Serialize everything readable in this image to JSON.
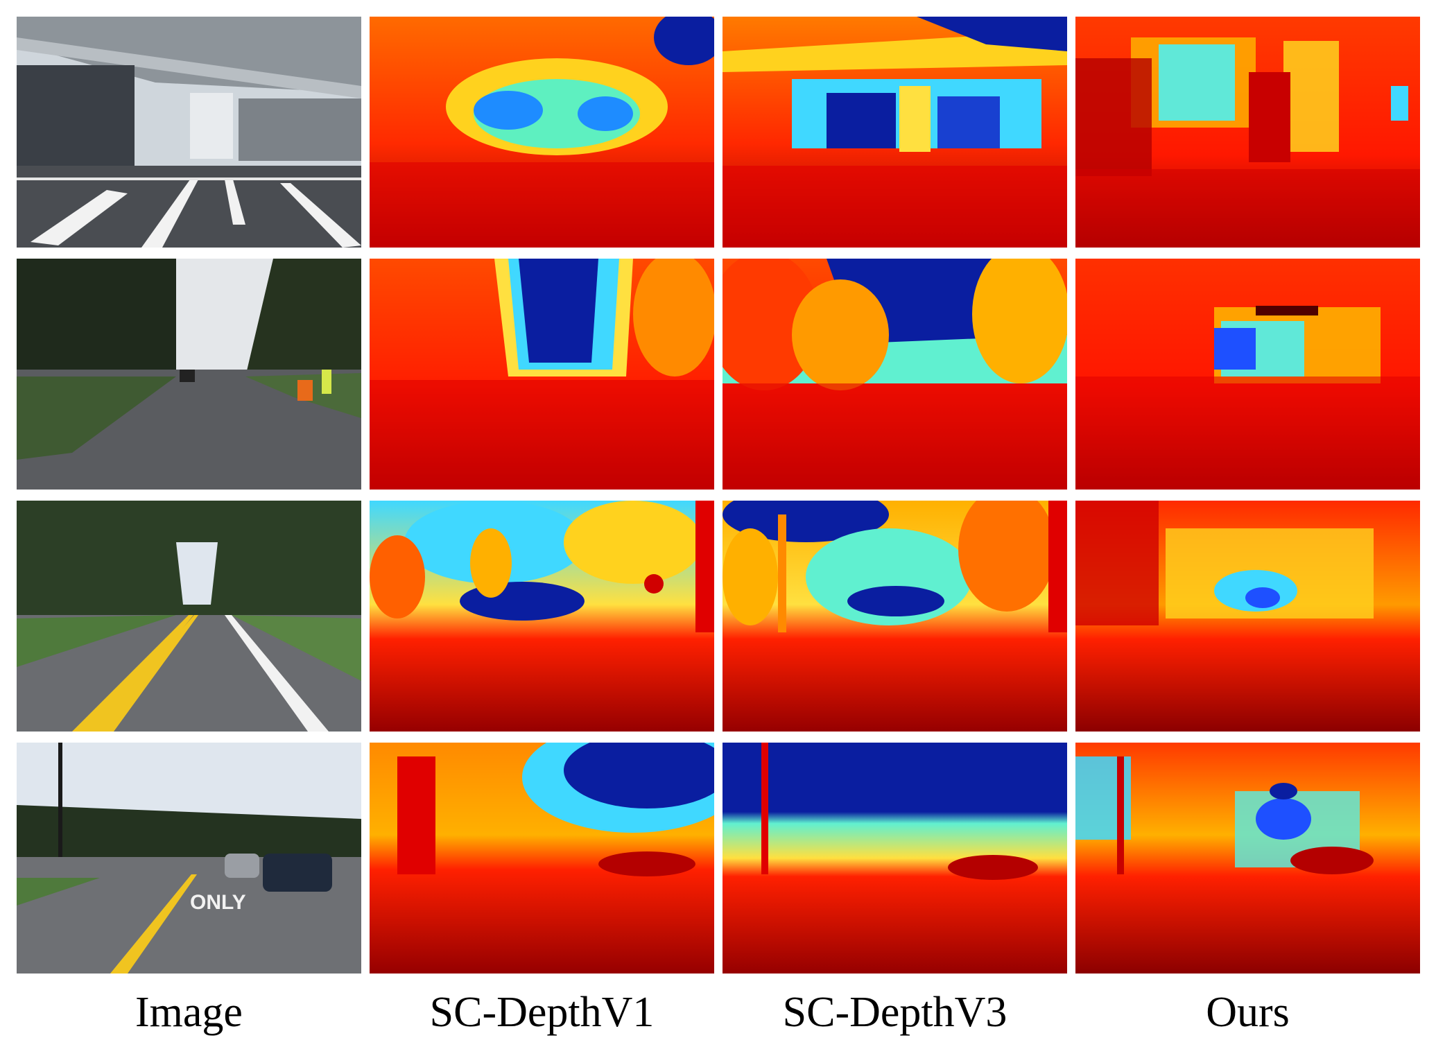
{
  "columns": [
    {
      "label": "Image"
    },
    {
      "label": "SC-DepthV1"
    },
    {
      "label": "SC-DepthV3"
    },
    {
      "label": "Ours"
    }
  ],
  "rows": [
    {
      "scene": "overpass-intersection-with-truck"
    },
    {
      "scene": "road-with-trees-and-traffic-cones"
    },
    {
      "scene": "tree-lined-road-with-yellow-lines"
    },
    {
      "scene": "intersection-with-only-marking"
    }
  ],
  "road_text": "ONLY",
  "colors": {
    "near": "#8b0000",
    "mid": "#ffd21e",
    "far": "#0a1ea0",
    "sky_photo": "#dfe6ee"
  }
}
